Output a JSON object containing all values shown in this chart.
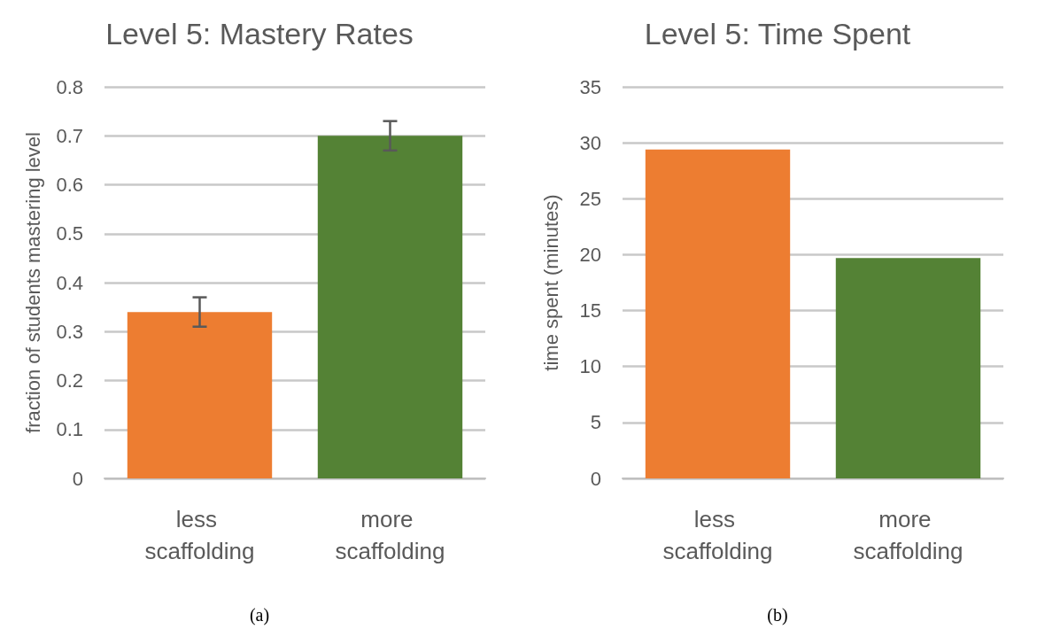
{
  "chart_data": [
    {
      "type": "bar",
      "title": "Level 5: Mastery Rates",
      "ylabel": "fraction of students mastering level",
      "categories": [
        "less scaffolding",
        "more scaffolding"
      ],
      "values": [
        0.34,
        0.7
      ],
      "colors": [
        "#ed7d31",
        "#548235"
      ],
      "errors": [
        [
          0.31,
          0.37
        ],
        [
          0.67,
          0.73
        ]
      ],
      "ylim": [
        0,
        0.8
      ],
      "yticks": [
        0,
        0.1,
        0.2,
        0.3,
        0.4,
        0.5,
        0.6,
        0.7,
        0.8
      ],
      "grid": "y",
      "annotations": [
        "(a)"
      ]
    },
    {
      "type": "bar",
      "title": "Level 5: Time Spent",
      "ylabel": "time spent (minutes)",
      "categories": [
        "less scaffolding",
        "more scaffolding"
      ],
      "values": [
        29.4,
        19.7
      ],
      "colors": [
        "#ed7d31",
        "#548235"
      ],
      "ylim": [
        0,
        35
      ],
      "yticks": [
        0,
        5,
        10,
        15,
        20,
        25,
        30,
        35
      ],
      "grid": "y",
      "annotations": [
        "(b)"
      ]
    }
  ]
}
